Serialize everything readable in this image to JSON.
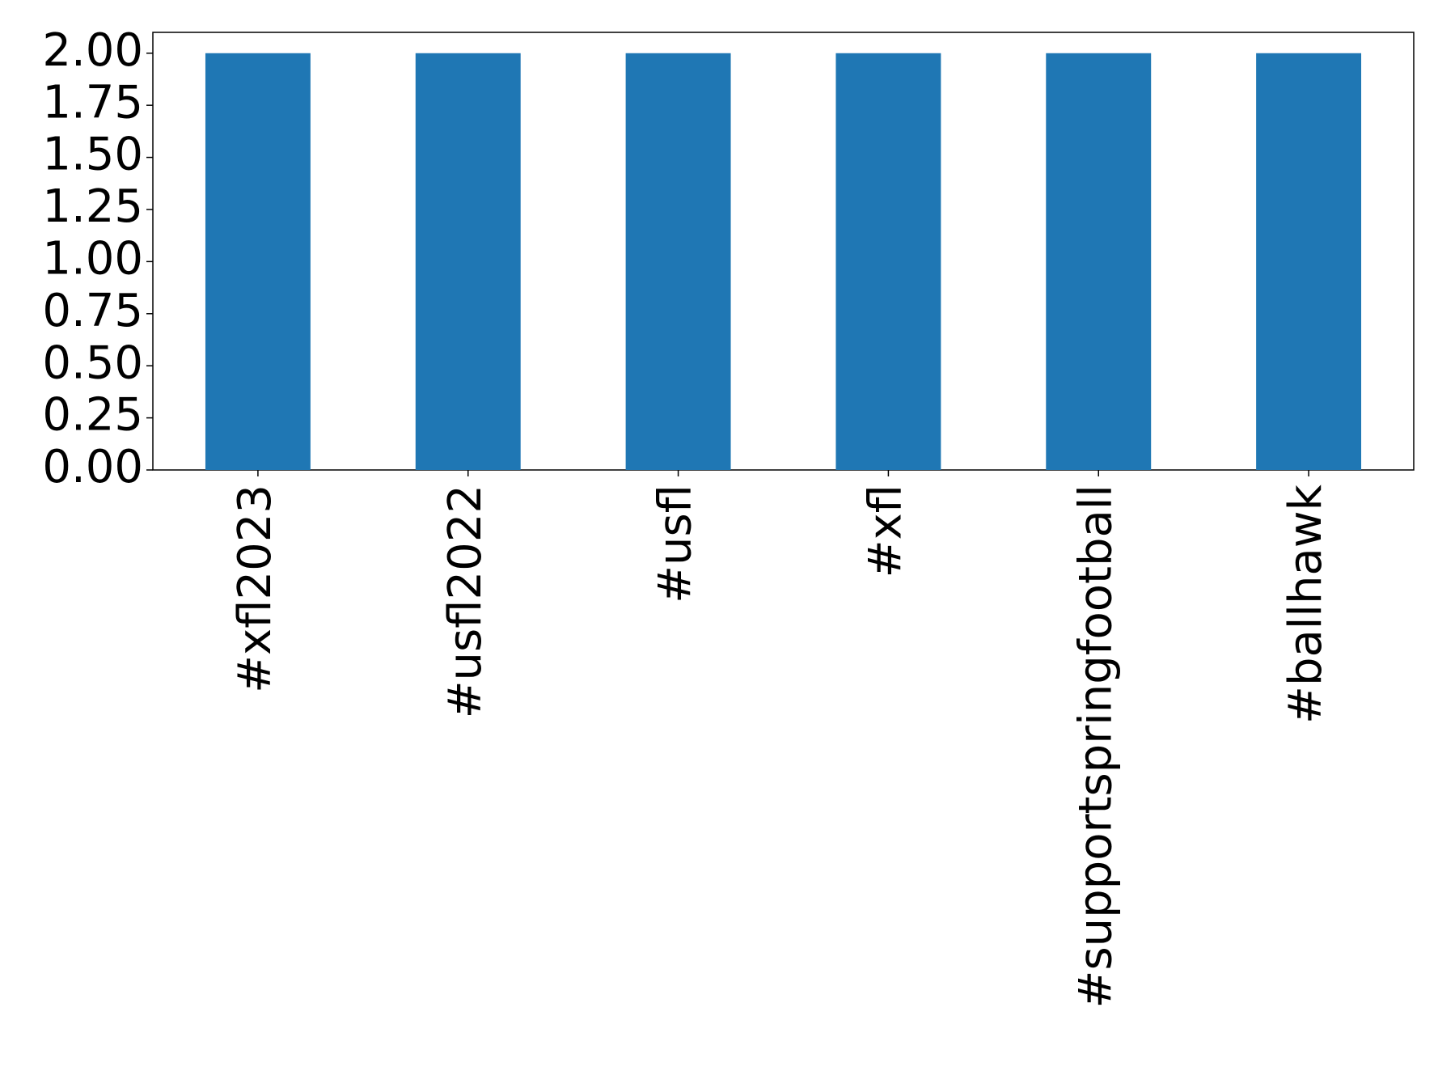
{
  "chart_data": {
    "type": "bar",
    "categories": [
      "#xfl2023",
      "#usfl2022",
      "#usfl",
      "#xfl",
      "#supportspringfootball",
      "#ballhawk"
    ],
    "values": [
      2,
      2,
      2,
      2,
      2,
      2
    ],
    "color": "#1f77b4",
    "ylim": [
      0,
      2.1
    ],
    "yticks": [
      {
        "value": 0,
        "label": "0.00"
      },
      {
        "value": 0.25,
        "label": "0.25"
      },
      {
        "value": 0.5,
        "label": "0.50"
      },
      {
        "value": 0.75,
        "label": "0.75"
      },
      {
        "value": 1,
        "label": "1.00"
      },
      {
        "value": 1.25,
        "label": "1.25"
      },
      {
        "value": 1.5,
        "label": "1.50"
      },
      {
        "value": 1.75,
        "label": "1.75"
      },
      {
        "value": 2,
        "label": "2.00"
      }
    ],
    "grid": false
  }
}
